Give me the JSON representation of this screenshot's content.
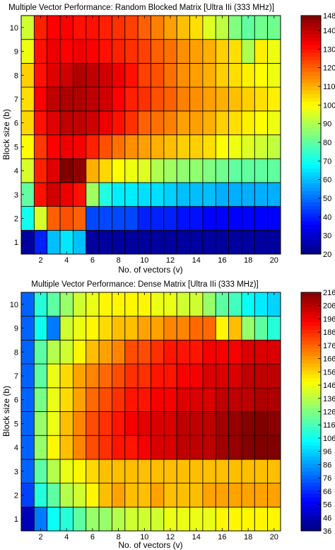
{
  "chart_data": [
    {
      "type": "heatmap",
      "title": "Multiple Vector Performance: Random Blocked Matrix [Ultra IIi (333 MHz)]",
      "xlabel": "No. of vectors (v)",
      "ylabel": "Block size (b)",
      "x": [
        1,
        2,
        3,
        4,
        5,
        6,
        7,
        8,
        9,
        10,
        11,
        12,
        13,
        14,
        15,
        16,
        17,
        18,
        19,
        20
      ],
      "y": [
        1,
        2,
        3,
        4,
        5,
        6,
        7,
        8,
        9,
        10
      ],
      "x_ticks": [
        2,
        4,
        6,
        8,
        10,
        12,
        14,
        16,
        18,
        20
      ],
      "y_ticks": [
        1,
        2,
        3,
        4,
        5,
        6,
        7,
        8,
        9,
        10
      ],
      "colorbar": {
        "min": 20,
        "max": 148,
        "ticks": [
          20,
          30,
          40,
          50,
          60,
          70,
          80,
          90,
          100,
          110,
          120,
          130,
          140,
          148
        ]
      },
      "z": [
        [
          24,
          40,
          60,
          65,
          60,
          24,
          24,
          24,
          24,
          24,
          24,
          24,
          24,
          24,
          24,
          24,
          24,
          24,
          24,
          24
        ],
        [
          70,
          95,
          120,
          122,
          120,
          45,
          45,
          45,
          45,
          40,
          40,
          40,
          38,
          38,
          36,
          36,
          36,
          36,
          36,
          36
        ],
        [
          80,
          130,
          138,
          134,
          130,
          88,
          72,
          66,
          66,
          64,
          64,
          62,
          60,
          60,
          60,
          58,
          58,
          58,
          58,
          58
        ],
        [
          95,
          128,
          136,
          148,
          146,
          110,
          105,
          100,
          98,
          96,
          90,
          88,
          86,
          86,
          84,
          82,
          80,
          80,
          80,
          80
        ],
        [
          100,
          125,
          132,
          134,
          133,
          128,
          122,
          118,
          114,
          112,
          110,
          108,
          106,
          106,
          104,
          100,
          98,
          96,
          94,
          92
        ],
        [
          105,
          130,
          136,
          140,
          140,
          138,
          134,
          130,
          126,
          120,
          118,
          116,
          112,
          112,
          110,
          106,
          104,
          102,
          100,
          98
        ],
        [
          104,
          132,
          140,
          142,
          142,
          140,
          138,
          132,
          128,
          126,
          122,
          120,
          116,
          114,
          112,
          110,
          108,
          106,
          104,
          102
        ],
        [
          106,
          130,
          136,
          138,
          142,
          140,
          138,
          134,
          130,
          124,
          122,
          118,
          114,
          112,
          110,
          106,
          104,
          102,
          100,
          98
        ],
        [
          98,
          130,
          134,
          132,
          134,
          132,
          130,
          128,
          126,
          124,
          120,
          118,
          114,
          112,
          110,
          106,
          104,
          90,
          102,
          98
        ],
        [
          94,
          128,
          132,
          132,
          130,
          130,
          128,
          126,
          124,
          120,
          116,
          112,
          108,
          104,
          96,
          92,
          84,
          80,
          82,
          82
        ]
      ]
    },
    {
      "type": "heatmap",
      "title": "Multiple Vector Performance: Dense Matrix [Ultra IIi (333 MHz)]",
      "xlabel": "No. of vectors (v)",
      "ylabel": "Block size (b)",
      "x": [
        1,
        2,
        3,
        4,
        5,
        6,
        7,
        8,
        9,
        10,
        11,
        12,
        13,
        14,
        15,
        16,
        17,
        18,
        19,
        20
      ],
      "y": [
        1,
        2,
        3,
        4,
        5,
        6,
        7,
        8,
        9,
        10
      ],
      "x_ticks": [
        2,
        4,
        6,
        8,
        10,
        12,
        14,
        16,
        18,
        20
      ],
      "y_ticks": [
        1,
        2,
        3,
        4,
        5,
        6,
        7,
        8,
        9,
        10
      ],
      "colorbar": {
        "min": 36,
        "max": 216,
        "ticks": [
          36,
          46,
          56,
          66,
          76,
          86,
          96,
          106,
          116,
          126,
          136,
          146,
          156,
          166,
          176,
          186,
          196,
          206,
          216
        ]
      },
      "z": [
        [
          46,
          80,
          105,
          110,
          120,
          130,
          130,
          135,
          140,
          140,
          140,
          145,
          145,
          145,
          145,
          150,
          150,
          150,
          150,
          150
        ],
        [
          70,
          110,
          120,
          135,
          140,
          150,
          160,
          165,
          160,
          160,
          165,
          160,
          160,
          160,
          165,
          165,
          165,
          165,
          165,
          165
        ],
        [
          76,
          120,
          135,
          145,
          150,
          155,
          160,
          160,
          160,
          160,
          160,
          160,
          160,
          160,
          160,
          160,
          160,
          160,
          160,
          160
        ],
        [
          76,
          130,
          150,
          160,
          170,
          180,
          185,
          190,
          190,
          195,
          200,
          200,
          205,
          205,
          205,
          210,
          212,
          215,
          216,
          216
        ],
        [
          76,
          130,
          145,
          160,
          170,
          180,
          185,
          190,
          195,
          198,
          200,
          200,
          205,
          205,
          205,
          210,
          212,
          215,
          216,
          214
        ],
        [
          76,
          125,
          145,
          155,
          165,
          175,
          180,
          185,
          190,
          190,
          195,
          195,
          200,
          200,
          200,
          205,
          205,
          205,
          208,
          208
        ],
        [
          76,
          120,
          145,
          155,
          165,
          170,
          175,
          180,
          185,
          185,
          190,
          190,
          195,
          195,
          200,
          200,
          200,
          205,
          205,
          205
        ],
        [
          76,
          120,
          135,
          140,
          150,
          160,
          165,
          170,
          180,
          180,
          185,
          190,
          190,
          190,
          195,
          195,
          195,
          200,
          200,
          200
        ],
        [
          76,
          106,
          80,
          140,
          145,
          150,
          155,
          160,
          160,
          165,
          165,
          170,
          170,
          175,
          175,
          150,
          160,
          130,
          120,
          110
        ],
        [
          76,
          110,
          120,
          130,
          140,
          145,
          150,
          150,
          150,
          150,
          145,
          145,
          140,
          140,
          130,
          120,
          115,
          105,
          100,
          96
        ]
      ]
    }
  ]
}
